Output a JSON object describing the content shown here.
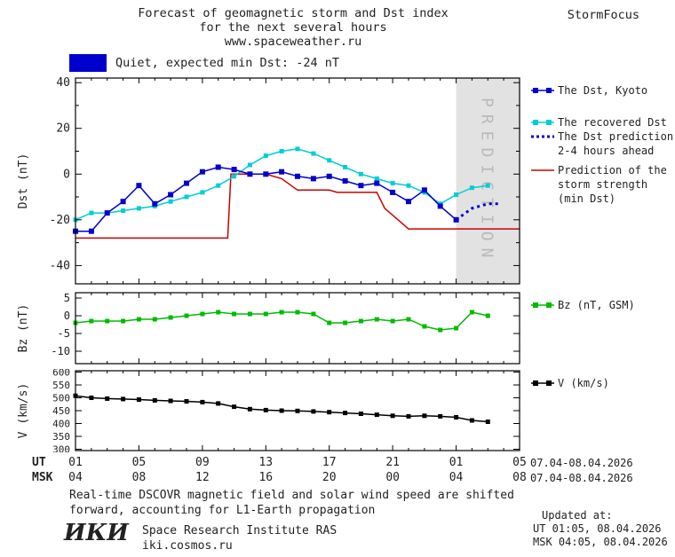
{
  "header": {
    "title_line1": "Forecast of geomagnetic storm and Dst index",
    "title_line2": "for the next several hours",
    "title_line3": "www.spaceweather.ru",
    "brand": "StormFocus"
  },
  "status": {
    "label": "Quiet, expected min Dst: -24 nT",
    "swatch_color": "#0000cc"
  },
  "colors": {
    "dst_kyoto": "#0000cc",
    "recovered": "#00cdd7",
    "prediction": "#0000cc",
    "storm": "#cc0000",
    "bz": "#00bb00",
    "v": "#000000",
    "prediction_bg": "#e2e2e2",
    "prediction_text": "#b9b9b9"
  },
  "legend": {
    "dst_kyoto": "The Dst, Kyoto",
    "recovered": "The recovered Dst",
    "prediction_line1": "The Dst prediction",
    "prediction_line2": "2-4 hours ahead",
    "storm_line1": "Prediction of the",
    "storm_line2": "storm strength",
    "storm_line3": "(min Dst)",
    "bz": "Bz (nT, GSM)",
    "v": "V (km/s)"
  },
  "xaxis": {
    "ut_label": "UT",
    "msk_label": "MSK",
    "ut_date": "07.04-08.04.2026",
    "msk_date": "07.04-08.04.2026"
  },
  "footnote": {
    "line1": "Real-time DSCOVR magnetic field and solar wind speed are shifted",
    "line2": "forward, accounting for L1-Earth propagation"
  },
  "footer": {
    "logo": "ИКИ",
    "institute": "Space Research Institute RAS",
    "site": "iki.cosmos.ru",
    "updated_label": "Updated at:",
    "updated_ut": "UT  01:05, 08.04.2026",
    "updated_msk": "MSK 04:05, 08.04.2026"
  },
  "chart_data": [
    {
      "type": "line",
      "panel": "dst",
      "ylabel": "Dst (nT)",
      "ylim": [
        -48,
        42
      ],
      "yticks": [
        -40,
        -20,
        0,
        20,
        40
      ],
      "yticks_minor": [
        -30,
        -10,
        10,
        30
      ],
      "xlim": [
        0,
        28
      ],
      "x_unit": "hours, 0 = 01:00 UT 07.04.2026",
      "xticks": {
        "hours": [
          0,
          4,
          8,
          12,
          16,
          20,
          24,
          28
        ],
        "ut": [
          "01",
          "05",
          "09",
          "13",
          "17",
          "21",
          "01",
          "05"
        ],
        "msk": [
          "04",
          "08",
          "12",
          "16",
          "20",
          "00",
          "04",
          "08"
        ]
      },
      "prediction_region": {
        "x": [
          24,
          28
        ],
        "label": "PREDICTION"
      },
      "series": [
        {
          "name": "Prediction of the storm strength (min Dst)",
          "color": "#cc0000",
          "width": 1.5,
          "x": [
            0,
            9.6,
            9.8,
            12,
            13,
            14,
            16,
            16.5,
            19,
            19.5,
            21,
            28
          ],
          "y": [
            -28,
            -28,
            0,
            0,
            -2,
            -7,
            -7,
            -8,
            -8,
            -15,
            -24,
            -24
          ]
        },
        {
          "name": "The recovered Dst",
          "color": "#00cdd7",
          "width": 1.5,
          "marker": "square",
          "marker_size": 5,
          "x": [
            0,
            1,
            2,
            3,
            4,
            5,
            6,
            7,
            8,
            9,
            10,
            11,
            12,
            13,
            14,
            15,
            16,
            17,
            18,
            19,
            20,
            21,
            22,
            23,
            24,
            25,
            26
          ],
          "y": [
            -20,
            -17,
            -17,
            -16,
            -15,
            -14,
            -12,
            -10,
            -8,
            -5,
            -1,
            4,
            8,
            10,
            11,
            9,
            6,
            3,
            0,
            -2,
            -4,
            -5,
            -8,
            -13,
            -9,
            -6,
            -5
          ]
        },
        {
          "name": "The Dst, Kyoto",
          "color": "#0000cc",
          "width": 1.5,
          "marker": "square",
          "marker_size": 6,
          "x": [
            0,
            1,
            2,
            3,
            4,
            5,
            6,
            7,
            8,
            9,
            10,
            11,
            12,
            13,
            14,
            15,
            16,
            17,
            18,
            19,
            20,
            21,
            22,
            23,
            24
          ],
          "y": [
            -25,
            -25,
            -17,
            -12,
            -5,
            -13,
            -9,
            -4,
            1,
            3,
            2,
            0,
            0,
            1,
            -1,
            -2,
            -1,
            -3,
            -5,
            -4,
            -8,
            -12,
            -7,
            -14,
            -20
          ]
        },
        {
          "name": "The Dst prediction 2-4 hours ahead",
          "color": "#0000cc",
          "width": 3,
          "dash": "3 4",
          "x": [
            24,
            25,
            26,
            26.8
          ],
          "y": [
            -20,
            -15,
            -13,
            -13
          ]
        }
      ]
    },
    {
      "type": "line",
      "panel": "bz",
      "ylabel": "Bz (nT)",
      "ylim": [
        -13.5,
        6.5
      ],
      "yticks": [
        -10,
        -5,
        0,
        5
      ],
      "xlim": [
        0,
        28
      ],
      "series": [
        {
          "name": "Bz (nT, GSM)",
          "color": "#00bb00",
          "width": 1.5,
          "marker": "square",
          "marker_size": 5,
          "x": [
            0,
            1,
            2,
            3,
            4,
            5,
            6,
            7,
            8,
            9,
            10,
            11,
            12,
            13,
            14,
            15,
            16,
            17,
            18,
            19,
            20,
            21,
            22,
            23,
            24,
            25,
            26
          ],
          "y": [
            -2,
            -1.5,
            -1.5,
            -1.5,
            -1,
            -1,
            -0.5,
            0,
            0.5,
            1,
            0.5,
            0.5,
            0.5,
            1,
            1,
            0.5,
            -2,
            -2,
            -1.5,
            -1,
            -1.5,
            -1,
            -3,
            -4,
            -3.5,
            1,
            0
          ]
        }
      ]
    },
    {
      "type": "line",
      "panel": "v",
      "ylabel": "V (km/s)",
      "ylim": [
        295,
        605
      ],
      "yticks": [
        300,
        350,
        400,
        450,
        500,
        550,
        600
      ],
      "xlim": [
        0,
        28
      ],
      "series": [
        {
          "name": "V (km/s)",
          "color": "#000000",
          "width": 1.5,
          "marker": "square",
          "marker_size": 5,
          "x": [
            0,
            1,
            2,
            3,
            4,
            5,
            6,
            7,
            8,
            9,
            10,
            11,
            12,
            13,
            14,
            15,
            16,
            17,
            18,
            19,
            20,
            21,
            22,
            23,
            24,
            25,
            26
          ],
          "y": [
            508,
            500,
            497,
            495,
            493,
            490,
            488,
            486,
            483,
            478,
            465,
            456,
            452,
            450,
            449,
            447,
            444,
            441,
            438,
            434,
            430,
            428,
            430,
            428,
            424,
            412,
            407
          ]
        }
      ]
    }
  ]
}
